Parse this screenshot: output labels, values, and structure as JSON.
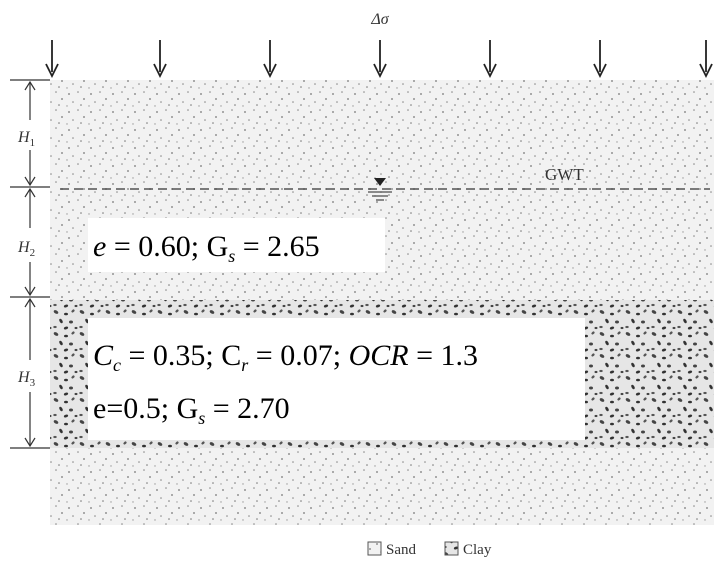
{
  "load_label": "Δσ",
  "layers": [
    {
      "symbol": "H",
      "subscript": "1"
    },
    {
      "symbol": "H",
      "subscript": "2"
    },
    {
      "symbol": "H",
      "subscript": "3"
    }
  ],
  "water_table": "GWT",
  "sand_properties": [
    "e",
    " = 0.60;  G",
    "s",
    " = 2.65"
  ],
  "clay_properties": {
    "line1": [
      "C",
      "c",
      " = 0.35;  C",
      "r",
      " = 0.07; ",
      "OCR",
      " = 1.3"
    ],
    "line2": [
      "e=0.5; G",
      "s",
      " = 2.70"
    ]
  },
  "legend": [
    "Sand",
    "Clay"
  ]
}
